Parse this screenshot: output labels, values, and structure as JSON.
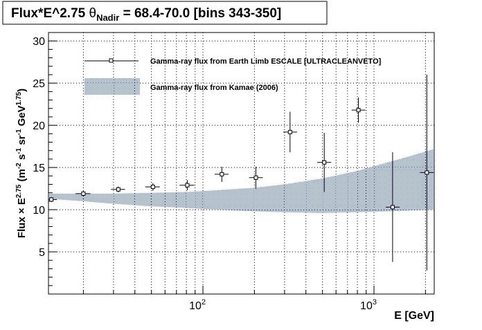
{
  "chart_data": {
    "type": "scatter",
    "title": "Flux*E^2.75 θNadir = 68.4-70.0 [bins 343-350]",
    "title_parts": {
      "prefix": "Flux*E^2.75 ",
      "theta": "θ",
      "sub": "Nadir",
      "suffix": " = 68.4-70.0 [bins 343-350]"
    },
    "xlabel": "E [GeV]",
    "ylabel": "Flux × E^2.75 (m^-2 s^-1 sr^-1 GeV^1.75)",
    "ylabel_parts": {
      "a": "Flux × E",
      "a_sup": "2.75",
      "b": " (m",
      "b_sup": "-2",
      "c": " s",
      "c_sup": "-1",
      "d": " sr",
      "d_sup": "-1",
      "e": " GeV",
      "e_sup": "1.75",
      "f": ")"
    },
    "x_scale": "log",
    "xlim": [
      12.5,
      2250
    ],
    "ylim": [
      0,
      31
    ],
    "x_tick_labels": [
      {
        "base": "10",
        "exp": "2",
        "value": 100
      },
      {
        "base": "10",
        "exp": "3",
        "value": 1000
      }
    ],
    "y_ticks": [
      5,
      10,
      15,
      20,
      25,
      30
    ],
    "y_tick_labels": [
      "5",
      "10",
      "15",
      "20",
      "25",
      "30"
    ],
    "grid": true,
    "legend_position": "top",
    "series": [
      {
        "name": "Gamma-ray flux from Earth Limb ESCALE [ULTRACLEANVETO]",
        "kind": "points",
        "points": [
          {
            "x": 13,
            "xlo": 12.5,
            "xhi": 14,
            "y": 11.2,
            "err": 0.3
          },
          {
            "x": 20,
            "xlo": 18,
            "xhi": 22,
            "y": 11.9,
            "err": 0.3
          },
          {
            "x": 32,
            "xlo": 29,
            "xhi": 35,
            "y": 12.4,
            "err": 0.35
          },
          {
            "x": 51,
            "xlo": 46,
            "xhi": 56,
            "y": 12.7,
            "err": 0.45
          },
          {
            "x": 81,
            "xlo": 73,
            "xhi": 89,
            "y": 12.9,
            "err": 0.6
          },
          {
            "x": 129,
            "xlo": 117,
            "xhi": 141,
            "y": 14.2,
            "err": 0.9
          },
          {
            "x": 204,
            "xlo": 186,
            "xhi": 224,
            "y": 13.8,
            "err": 1.3
          },
          {
            "x": 323,
            "xlo": 295,
            "xhi": 355,
            "y": 19.2,
            "err": 2.4
          },
          {
            "x": 512,
            "xlo": 466,
            "xhi": 562,
            "y": 15.6,
            "err": 3.5
          },
          {
            "x": 811,
            "xlo": 740,
            "xhi": 890,
            "y": 21.8,
            "err": 1.5
          },
          {
            "x": 1285,
            "xlo": 1170,
            "xhi": 1410,
            "y": 10.3,
            "err": 6.5
          },
          {
            "x": 2037,
            "xlo": 1855,
            "xhi": 2235,
            "y": 14.4,
            "err": 11.6
          }
        ]
      },
      {
        "name": "Gamma-ray flux from Kamae (2006)",
        "kind": "band",
        "color": "#6f86c7",
        "x": [
          12.5,
          20,
          30,
          50,
          80,
          120,
          200,
          300,
          500,
          800,
          1200,
          1600,
          2250
        ],
        "lower": [
          11.3,
          11.0,
          10.7,
          10.4,
          10.2,
          10.0,
          9.8,
          9.7,
          9.6,
          9.7,
          9.8,
          9.9,
          10.0
        ],
        "upper": [
          11.9,
          11.9,
          11.9,
          12.0,
          12.1,
          12.3,
          12.6,
          13.0,
          13.7,
          14.6,
          15.6,
          16.3,
          17.2
        ]
      }
    ]
  }
}
